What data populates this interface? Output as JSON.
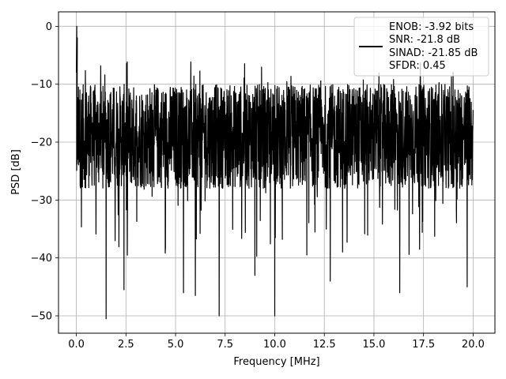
{
  "chart_data": {
    "type": "line",
    "title": "",
    "xlabel": "Frequency [MHz]",
    "ylabel": "PSD [dB]",
    "xlim": [
      -0.9,
      21.1
    ],
    "ylim": [
      -53,
      2.5
    ],
    "xticks": [
      0.0,
      2.5,
      5.0,
      7.5,
      10.0,
      12.5,
      15.0,
      17.5,
      20.0
    ],
    "xtick_labels": [
      "0.0",
      "2.5",
      "5.0",
      "7.5",
      "10.0",
      "12.5",
      "15.0",
      "17.5",
      "20.0"
    ],
    "yticks": [
      0,
      -10,
      -20,
      -30,
      -40,
      -50
    ],
    "ytick_labels": [
      "0",
      "−10",
      "−20",
      "−30",
      "−40",
      "−50"
    ],
    "grid": true,
    "legend_position": "top-right",
    "line_color": "#000000",
    "series": [
      {
        "x_range": [
          0,
          20
        ],
        "peak": {
          "x": 0.02,
          "y": 0
        },
        "typical_band": [
          -28,
          -10
        ],
        "deep_nulls": [
          {
            "x": 1.5,
            "y": -50.5
          },
          {
            "x": 7.2,
            "y": -50.0
          },
          {
            "x": 10.0,
            "y": -50.0
          },
          {
            "x": 6.0,
            "y": -46.5
          },
          {
            "x": 5.4,
            "y": -46.0
          },
          {
            "x": 2.4,
            "y": -45.5
          },
          {
            "x": 16.3,
            "y": -46.0
          },
          {
            "x": 19.7,
            "y": -45.0
          },
          {
            "x": 12.8,
            "y": -44.0
          },
          {
            "x": 9.0,
            "y": -43.0
          }
        ]
      }
    ],
    "legend": {
      "lines": [
        "ENOB: -3.92 bits",
        "SNR: -21.8 dB",
        "SINAD: -21.85 dB",
        "SFDR: 0.45"
      ]
    }
  }
}
